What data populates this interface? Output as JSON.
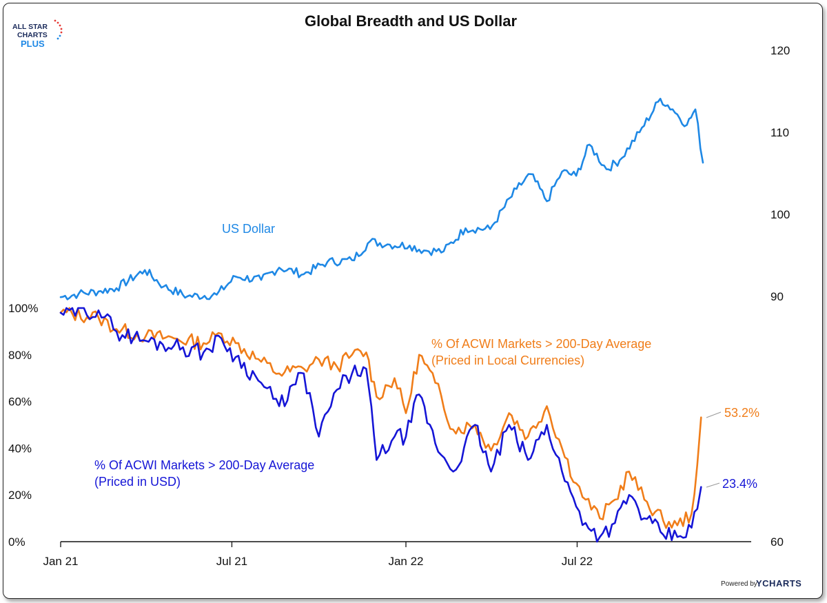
{
  "chart_data": {
    "type": "line",
    "title": "Global Breadth and US Dollar",
    "x_axis": {
      "ticks": [
        "Jan 21",
        "Jul 21",
        "Jan 22",
        "Jul 22"
      ],
      "range": [
        "2021-01-01",
        "2023-01-01"
      ]
    },
    "y_left": {
      "ticks": [
        "0%",
        "20%",
        "40%",
        "60%",
        "80%",
        "100%"
      ],
      "range": [
        0,
        100
      ],
      "unit": "%"
    },
    "y_right": {
      "ticks": [
        "60",
        "90",
        "100",
        "110",
        "120"
      ],
      "range": [
        60,
        120
      ]
    },
    "grid": false,
    "series": [
      {
        "name": "US Dollar",
        "axis": "right",
        "color": "#1e88e5",
        "points": [
          [
            "2021-01-01",
            89.9
          ],
          [
            "2021-01-20",
            90.3
          ],
          [
            "2021-02-10",
            90.6
          ],
          [
            "2021-03-01",
            91.0
          ],
          [
            "2021-03-31",
            93.2
          ],
          [
            "2021-04-20",
            91.2
          ],
          [
            "2021-05-15",
            90.0
          ],
          [
            "2021-06-15",
            90.2
          ],
          [
            "2021-07-05",
            92.4
          ],
          [
            "2021-08-01",
            92.0
          ],
          [
            "2021-08-20",
            93.5
          ],
          [
            "2021-09-15",
            92.7
          ],
          [
            "2021-10-10",
            94.2
          ],
          [
            "2021-11-05",
            94.4
          ],
          [
            "2021-11-24",
            96.7
          ],
          [
            "2021-12-15",
            96.3
          ],
          [
            "2022-01-05",
            96.2
          ],
          [
            "2022-01-20",
            95.6
          ],
          [
            "2022-02-10",
            95.5
          ],
          [
            "2022-03-05",
            98.3
          ],
          [
            "2022-03-31",
            98.2
          ],
          [
            "2022-04-28",
            103.1
          ],
          [
            "2022-05-13",
            104.9
          ],
          [
            "2022-05-30",
            101.6
          ],
          [
            "2022-06-15",
            105.2
          ],
          [
            "2022-06-30",
            104.7
          ],
          [
            "2022-07-14",
            108.5
          ],
          [
            "2022-08-01",
            105.5
          ],
          [
            "2022-08-15",
            106.6
          ],
          [
            "2022-09-05",
            110.0
          ],
          [
            "2022-09-27",
            114.1
          ],
          [
            "2022-10-10",
            112.8
          ],
          [
            "2022-10-25",
            110.9
          ],
          [
            "2022-11-03",
            112.8
          ],
          [
            "2022-11-11",
            106.3
          ]
        ]
      },
      {
        "name": "% Of ACWI Markets > 200-Day Average (Priced in Local Currencies)",
        "axis": "left",
        "color": "#f07d19",
        "points": [
          [
            "2021-01-01",
            98
          ],
          [
            "2021-02-10",
            96
          ],
          [
            "2021-03-01",
            91
          ],
          [
            "2021-04-01",
            88
          ],
          [
            "2021-05-01",
            87
          ],
          [
            "2021-06-01",
            85
          ],
          [
            "2021-06-20",
            89
          ],
          [
            "2021-07-05",
            85
          ],
          [
            "2021-08-01",
            77
          ],
          [
            "2021-08-20",
            72
          ],
          [
            "2021-09-15",
            74
          ],
          [
            "2021-10-01",
            78
          ],
          [
            "2021-10-20",
            75
          ],
          [
            "2021-11-05",
            80
          ],
          [
            "2021-11-20",
            81
          ],
          [
            "2021-12-01",
            62
          ],
          [
            "2021-12-20",
            70
          ],
          [
            "2022-01-01",
            55
          ],
          [
            "2022-01-15",
            80
          ],
          [
            "2022-02-01",
            68
          ],
          [
            "2022-02-20",
            48
          ],
          [
            "2022-03-15",
            50
          ],
          [
            "2022-04-01",
            39
          ],
          [
            "2022-04-20",
            55
          ],
          [
            "2022-05-10",
            45
          ],
          [
            "2022-05-30",
            58
          ],
          [
            "2022-06-15",
            40
          ],
          [
            "2022-06-30",
            25
          ],
          [
            "2022-07-10",
            18
          ],
          [
            "2022-07-25",
            10
          ],
          [
            "2022-08-10",
            18
          ],
          [
            "2022-08-25",
            30
          ],
          [
            "2022-09-10",
            18
          ],
          [
            "2022-09-30",
            9
          ],
          [
            "2022-10-15",
            7
          ],
          [
            "2022-10-30",
            12
          ],
          [
            "2022-11-05",
            33
          ],
          [
            "2022-11-09",
            53.2
          ]
        ]
      },
      {
        "name": "% Of ACWI Markets > 200-Day Average (Priced in USD)",
        "axis": "left",
        "color": "#1515d6",
        "points": [
          [
            "2021-01-01",
            98
          ],
          [
            "2021-02-10",
            99
          ],
          [
            "2021-03-01",
            90
          ],
          [
            "2021-04-01",
            86
          ],
          [
            "2021-05-01",
            84
          ],
          [
            "2021-06-01",
            81
          ],
          [
            "2021-06-20",
            87
          ],
          [
            "2021-07-05",
            79
          ],
          [
            "2021-08-01",
            68
          ],
          [
            "2021-08-20",
            58
          ],
          [
            "2021-09-15",
            72
          ],
          [
            "2021-10-01",
            45
          ],
          [
            "2021-10-20",
            65
          ],
          [
            "2021-11-05",
            72
          ],
          [
            "2021-11-20",
            74
          ],
          [
            "2021-12-01",
            35
          ],
          [
            "2021-12-20",
            45
          ],
          [
            "2022-01-01",
            45
          ],
          [
            "2022-01-15",
            63
          ],
          [
            "2022-02-01",
            42
          ],
          [
            "2022-02-20",
            30
          ],
          [
            "2022-03-15",
            50
          ],
          [
            "2022-04-01",
            30
          ],
          [
            "2022-04-20",
            50
          ],
          [
            "2022-05-10",
            35
          ],
          [
            "2022-05-30",
            50
          ],
          [
            "2022-06-15",
            30
          ],
          [
            "2022-06-30",
            15
          ],
          [
            "2022-07-10",
            8
          ],
          [
            "2022-07-25",
            2
          ],
          [
            "2022-08-10",
            8
          ],
          [
            "2022-08-25",
            20
          ],
          [
            "2022-09-10",
            10
          ],
          [
            "2022-09-30",
            3
          ],
          [
            "2022-10-15",
            2
          ],
          [
            "2022-10-30",
            6
          ],
          [
            "2022-11-05",
            14
          ],
          [
            "2022-11-09",
            23.4
          ]
        ]
      }
    ],
    "annotations": {
      "usd_label": "US Dollar",
      "local_label_line1": "% Of ACWI Markets > 200-Day Average",
      "local_label_line2": "(Priced in Local Currencies)",
      "usd_priced_label_line1": "% Of ACWI Markets > 200-Day Average",
      "usd_priced_label_line2": "(Priced in USD)",
      "local_last_value": "53.2%",
      "usd_priced_last_value": "23.4%"
    }
  },
  "logo": {
    "line1": "ALL STAR",
    "line2": "CHARTS",
    "line3": "PLUS"
  },
  "footer": {
    "powered_by": "Powered by",
    "brand": "YCHARTS"
  }
}
